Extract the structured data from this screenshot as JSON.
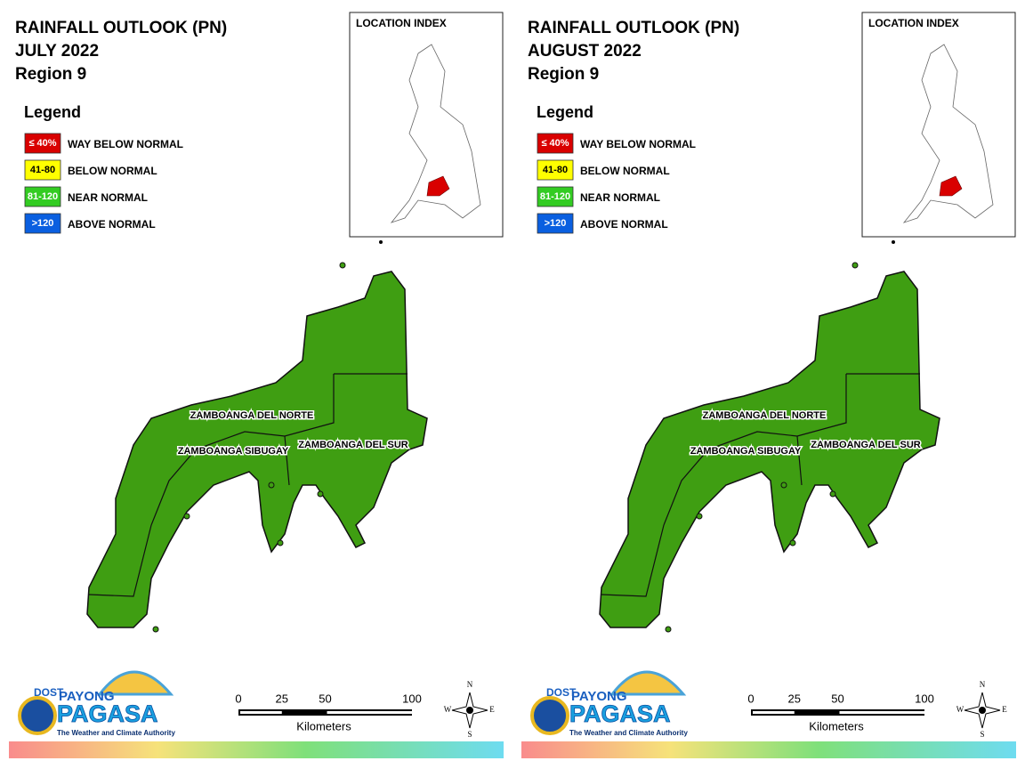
{
  "panels": [
    {
      "title": "RAINFALL OUTLOOK (PN)",
      "month": "JULY 2022",
      "region": "Region 9",
      "legend": {
        "title": "Legend",
        "items": [
          {
            "range": "≤ 40%",
            "label": "WAY BELOW NORMAL",
            "color": "#d90000"
          },
          {
            "range": "41-80",
            "label": "BELOW NORMAL",
            "color": "#ffff00"
          },
          {
            "range": "81-120",
            "label": "NEAR NORMAL",
            "color": "#33cc22"
          },
          {
            "range": ">120",
            "label": "ABOVE NORMAL",
            "color": "#0a5fe0"
          }
        ]
      },
      "inset": {
        "title": "LOCATION INDEX"
      },
      "map": {
        "fill": "#3f9e12",
        "provinces": [
          "ZAMBOANGA DEL NORTE",
          "ZAMBOANGA SIBUGAY",
          "ZAMBOANGA DEL SUR"
        ]
      },
      "scale": {
        "ticks": [
          0,
          25,
          50,
          100
        ],
        "unit": "Kilometers"
      },
      "compass": [
        "N",
        "E",
        "S",
        "W"
      ],
      "logo": {
        "agency": "DOST",
        "line1": "PAYONG",
        "line2": "PAGASA",
        "tagline": "The Weather and Climate Authority"
      }
    },
    {
      "title": "RAINFALL OUTLOOK (PN)",
      "month": "AUGUST 2022",
      "region": "Region 9",
      "legend": {
        "title": "Legend",
        "items": [
          {
            "range": "≤ 40%",
            "label": "WAY BELOW NORMAL",
            "color": "#d90000"
          },
          {
            "range": "41-80",
            "label": "BELOW NORMAL",
            "color": "#ffff00"
          },
          {
            "range": "81-120",
            "label": "NEAR NORMAL",
            "color": "#33cc22"
          },
          {
            "range": ">120",
            "label": "ABOVE NORMAL",
            "color": "#0a5fe0"
          }
        ]
      },
      "inset": {
        "title": "LOCATION INDEX"
      },
      "map": {
        "fill": "#3f9e12",
        "provinces": [
          "ZAMBOANGA DEL NORTE",
          "ZAMBOANGA SIBUGAY",
          "ZAMBOANGA DEL SUR"
        ]
      },
      "scale": {
        "ticks": [
          0,
          25,
          50,
          100
        ],
        "unit": "Kilometers"
      },
      "compass": [
        "N",
        "E",
        "S",
        "W"
      ],
      "logo": {
        "agency": "DOST",
        "line1": "PAYONG",
        "line2": "PAGASA",
        "tagline": "The Weather and Climate Authority"
      }
    }
  ]
}
